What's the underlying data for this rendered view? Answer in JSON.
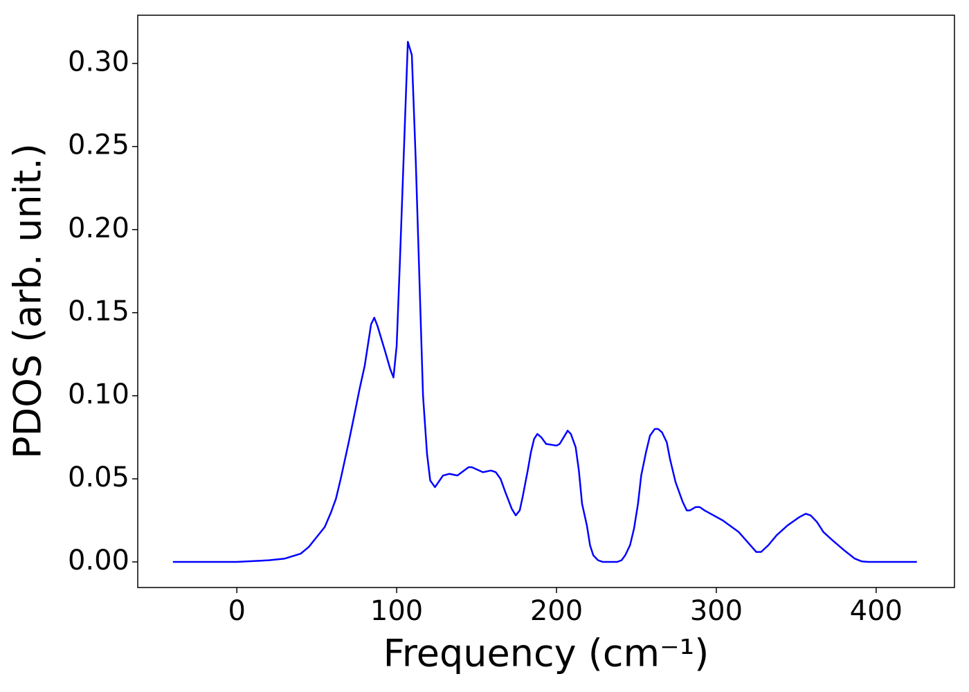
{
  "chart_data": {
    "type": "line",
    "xlabel": "Frequency (cm⁻¹)",
    "ylabel": "PDOS (arb. unit.)",
    "xlim": [
      -62,
      449
    ],
    "ylim": [
      -0.0154,
      0.329
    ],
    "xticks": [
      0,
      100,
      200,
      300,
      400
    ],
    "yticks": [
      {
        "value": 0,
        "label": "0.00"
      },
      {
        "value": 0.05,
        "label": "0.05"
      },
      {
        "value": 0.1,
        "label": "0.10"
      },
      {
        "value": 0.15,
        "label": "0.15"
      },
      {
        "value": 0.2,
        "label": "0.20"
      },
      {
        "value": 0.25,
        "label": "0.25"
      },
      {
        "value": 0.3,
        "label": "0.30"
      }
    ],
    "grid": false,
    "series": [
      {
        "color": "#0000ff",
        "x": [
          -40,
          0,
          20,
          30,
          40,
          45,
          50,
          55,
          59,
          62,
          65,
          70,
          73,
          77,
          80,
          84,
          86,
          88,
          93,
          96,
          98,
          100,
          102,
          105,
          107,
          109.5,
          112,
          116.5,
          119,
          121,
          124,
          129,
          133,
          138,
          145,
          147,
          154,
          159,
          162,
          165,
          168,
          172,
          174.5,
          177,
          179,
          182,
          184,
          186,
          188,
          190.5,
          193.5,
          200,
          202,
          204.5,
          207,
          209,
          212,
          214,
          216,
          219,
          221,
          223,
          226,
          229,
          238,
          240.7,
          243,
          246,
          248.5,
          251,
          253,
          256,
          258.5,
          261.5,
          263.6,
          266,
          269,
          271,
          274.5,
          279,
          281.5,
          283.5,
          287,
          289.6,
          292.6,
          304,
          314,
          319.5,
          325,
          328,
          332.5,
          337.7,
          344.6,
          352,
          356,
          359,
          363,
          367,
          372.7,
          380,
          386.6,
          391,
          395,
          425.5
        ],
        "values": [
          0,
          0,
          0.001,
          0.002,
          0.005,
          0.009,
          0.015,
          0.021,
          0.03,
          0.038,
          0.05,
          0.072,
          0.086,
          0.105,
          0.118,
          0.143,
          0.147,
          0.142,
          0.126,
          0.116,
          0.111,
          0.13,
          0.18,
          0.26,
          0.313,
          0.305,
          0.24,
          0.1,
          0.065,
          0.049,
          0.045,
          0.052,
          0.053,
          0.052,
          0.057,
          0.057,
          0.054,
          0.055,
          0.054,
          0.05,
          0.042,
          0.032,
          0.028,
          0.031,
          0.04,
          0.055,
          0.066,
          0.074,
          0.077,
          0.075,
          0.071,
          0.07,
          0.071,
          0.075,
          0.079,
          0.077,
          0.069,
          0.055,
          0.035,
          0.022,
          0.01,
          0.004,
          0.001,
          0,
          0,
          0.001,
          0.004,
          0.01,
          0.02,
          0.035,
          0.052,
          0.066,
          0.076,
          0.08,
          0.08,
          0.078,
          0.072,
          0.062,
          0.048,
          0.036,
          0.031,
          0.031,
          0.033,
          0.033,
          0.031,
          0.025,
          0.018,
          0.012,
          0.006,
          0.006,
          0.01,
          0.016,
          0.022,
          0.027,
          0.029,
          0.028,
          0.024,
          0.018,
          0.013,
          0.007,
          0.002,
          0.0003,
          0,
          0
        ]
      }
    ]
  }
}
